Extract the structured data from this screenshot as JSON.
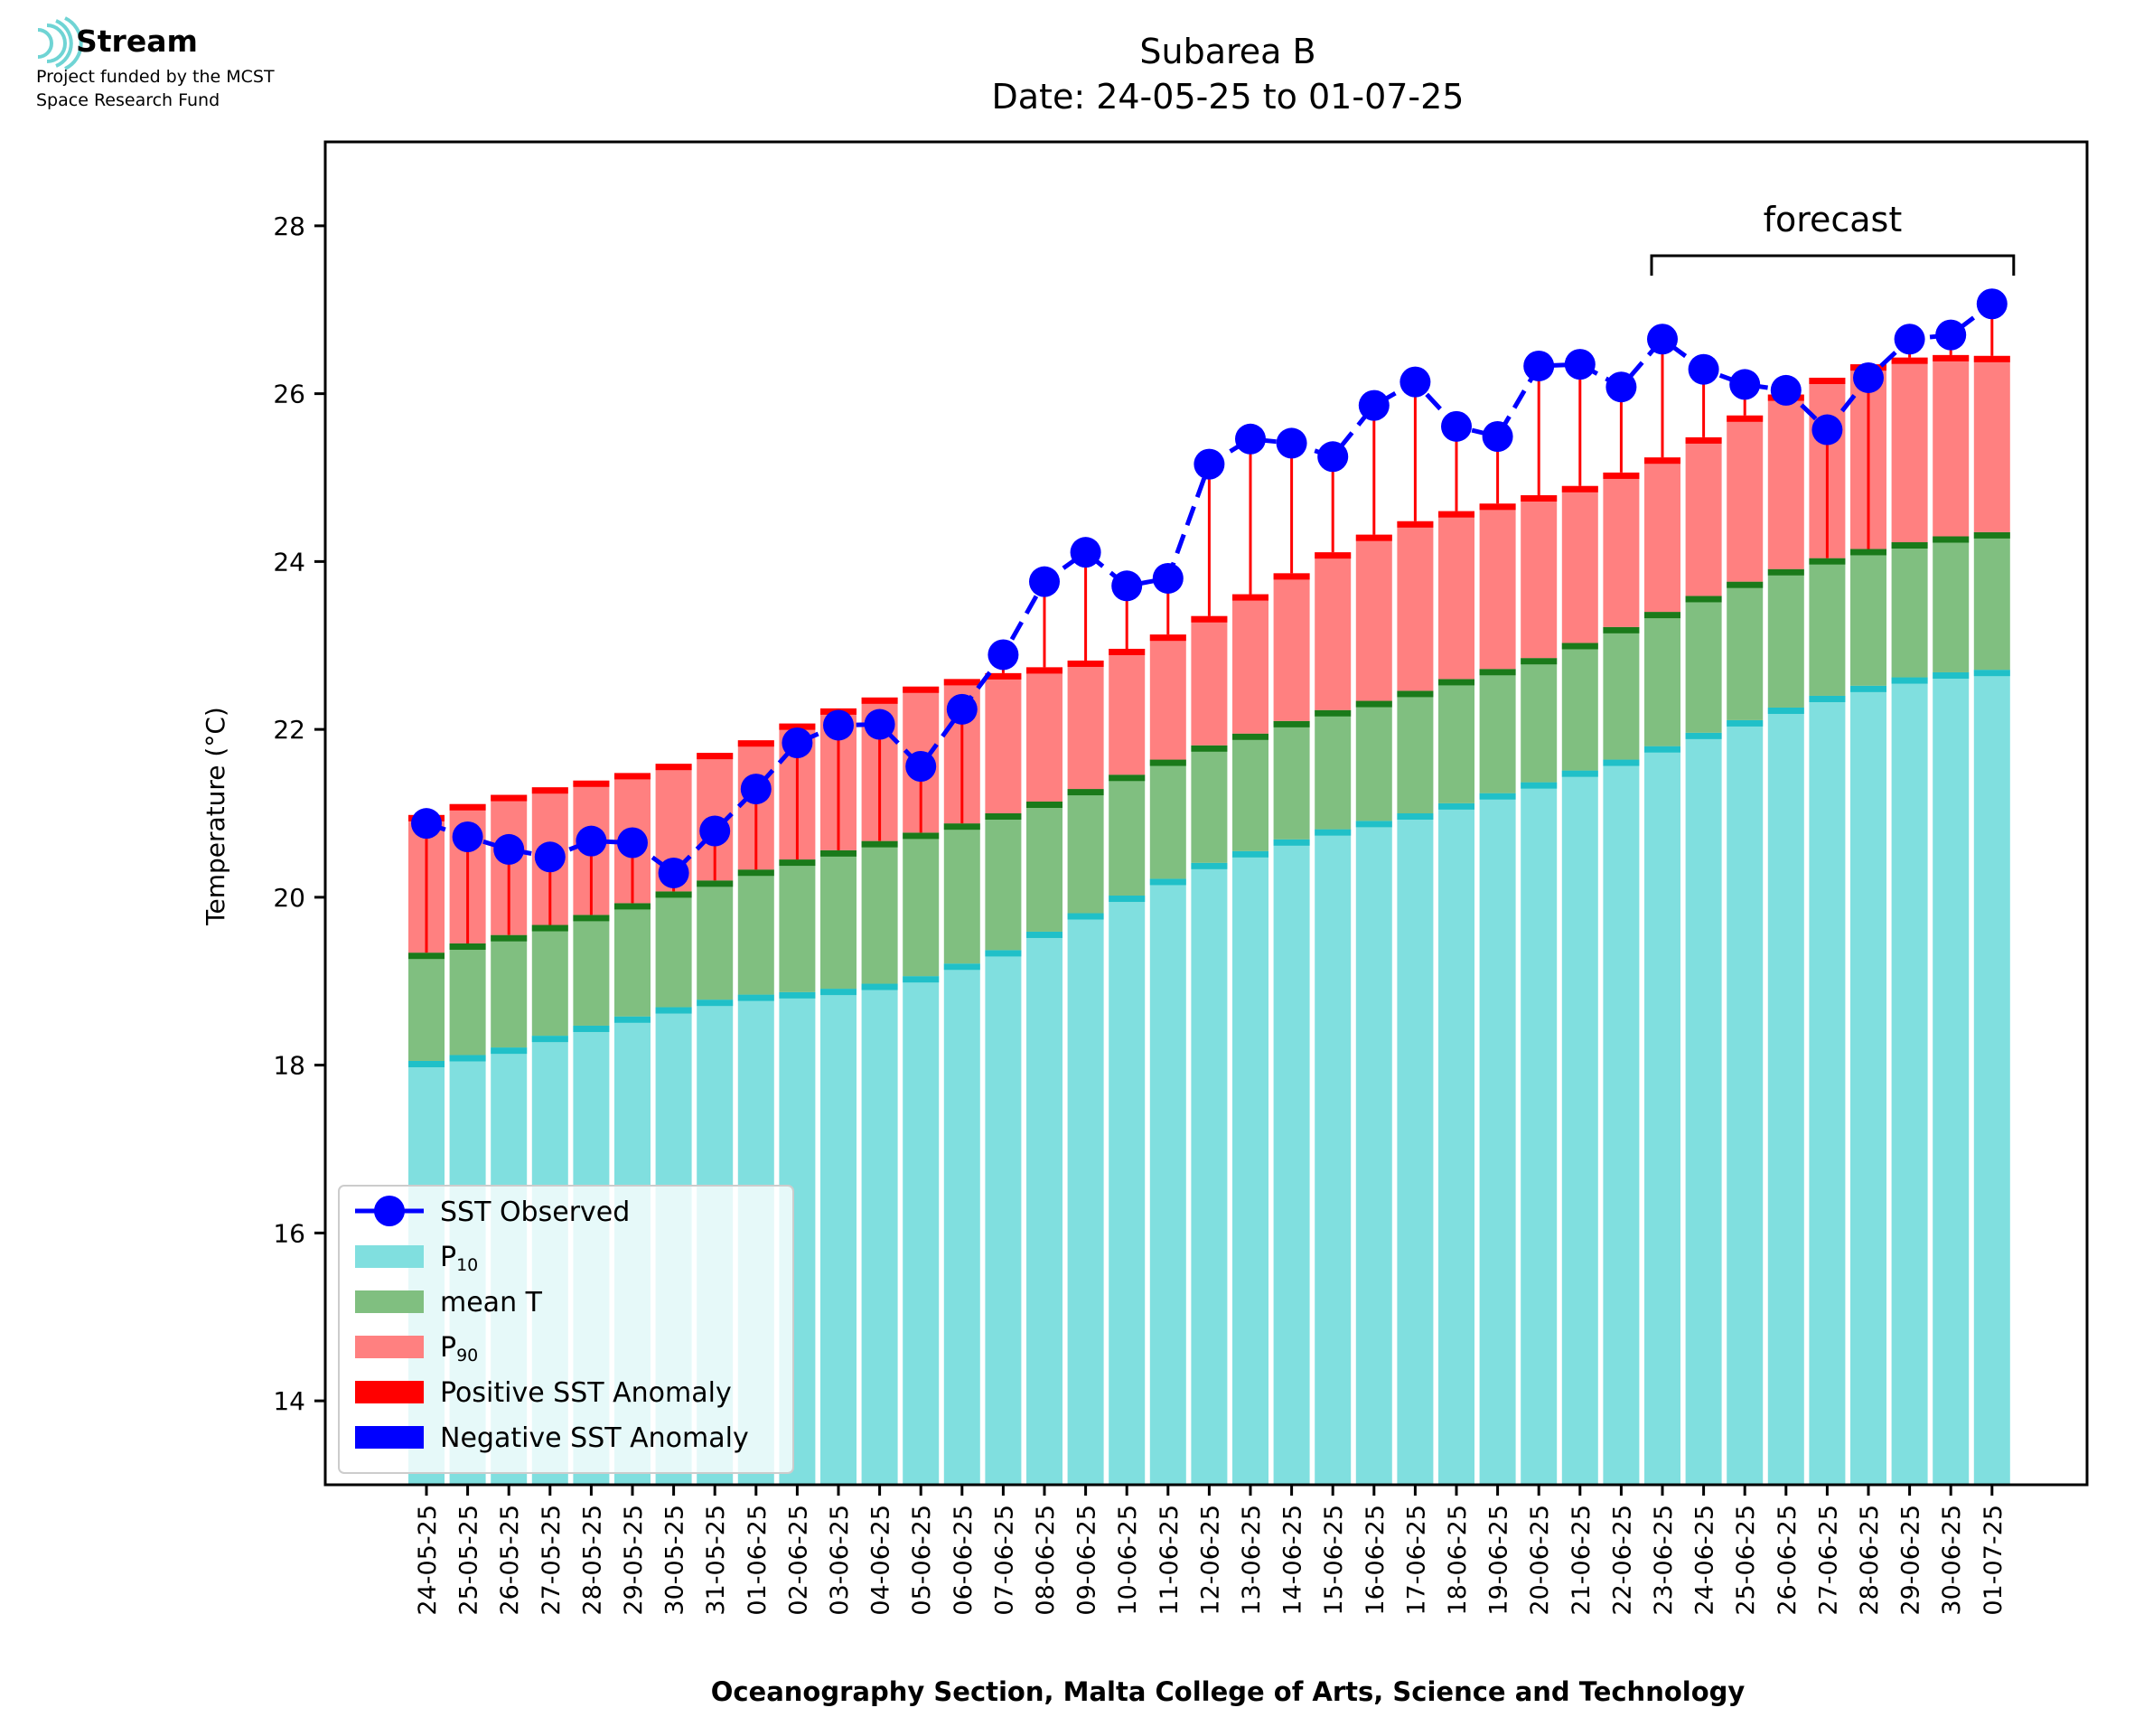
{
  "logo": {
    "name": "Stream",
    "line1": "Project funded by the MCST",
    "line2": "Space Research Fund"
  },
  "chart_data": {
    "type": "bar",
    "title": "Subarea B",
    "subtitle": "Date: 24-05-25 to 01-07-25",
    "xlabel": "Oceanography Section, Malta College of Arts, Science and Technology",
    "ylabel": "Temperature (°C)",
    "ylim": [
      13,
      29
    ],
    "yticks": [
      14,
      16,
      18,
      20,
      22,
      24,
      26,
      28
    ],
    "grid": false,
    "legend_position": "bottom-left",
    "categories": [
      "24-05-25",
      "25-05-25",
      "26-05-25",
      "27-05-25",
      "28-05-25",
      "29-05-25",
      "30-05-25",
      "31-05-25",
      "01-06-25",
      "02-06-25",
      "03-06-25",
      "04-06-25",
      "05-06-25",
      "06-06-25",
      "07-06-25",
      "08-06-25",
      "09-06-25",
      "10-06-25",
      "11-06-25",
      "12-06-25",
      "13-06-25",
      "14-06-25",
      "15-06-25",
      "16-06-25",
      "17-06-25",
      "18-06-25",
      "19-06-25",
      "20-06-25",
      "21-06-25",
      "22-06-25",
      "23-06-25",
      "24-06-25",
      "25-06-25",
      "26-06-25",
      "27-06-25",
      "28-06-25",
      "29-06-25",
      "30-06-25",
      "01-07-25"
    ],
    "series": [
      {
        "name": "SST Observed",
        "kind": "line",
        "color": "#0000ff",
        "values": [
          20.88,
          20.72,
          20.57,
          20.48,
          20.67,
          20.65,
          20.29,
          20.79,
          21.29,
          21.84,
          22.05,
          22.06,
          21.56,
          22.24,
          22.89,
          23.76,
          24.11,
          23.71,
          23.8,
          25.16,
          25.46,
          25.41,
          25.25,
          25.86,
          26.14,
          25.61,
          25.49,
          26.33,
          26.35,
          26.08,
          26.65,
          26.29,
          26.11,
          26.04,
          25.57,
          26.19,
          26.65,
          26.7,
          27.07
        ]
      },
      {
        "name": "P10",
        "name_main": "P",
        "name_sub": "10",
        "kind": "bar",
        "color": "#80dfdf",
        "edge_color": "#20c0c8",
        "values": [
          18.05,
          18.12,
          18.21,
          18.35,
          18.47,
          18.58,
          18.69,
          18.78,
          18.84,
          18.87,
          18.91,
          18.97,
          19.06,
          19.21,
          19.37,
          19.59,
          19.81,
          20.02,
          20.22,
          20.41,
          20.55,
          20.69,
          20.81,
          20.91,
          21.0,
          21.12,
          21.24,
          21.37,
          21.51,
          21.64,
          21.8,
          21.96,
          22.11,
          22.26,
          22.4,
          22.52,
          22.62,
          22.68,
          22.71
        ]
      },
      {
        "name": "mean T",
        "kind": "bar",
        "color": "#80bf80",
        "edge_color": "#1a7a1a",
        "values": [
          19.34,
          19.45,
          19.55,
          19.67,
          19.79,
          19.93,
          20.07,
          20.2,
          20.33,
          20.45,
          20.56,
          20.67,
          20.77,
          20.88,
          21.0,
          21.14,
          21.29,
          21.46,
          21.64,
          21.81,
          21.95,
          22.1,
          22.23,
          22.34,
          22.46,
          22.6,
          22.72,
          22.85,
          23.03,
          23.22,
          23.4,
          23.59,
          23.76,
          23.91,
          24.04,
          24.15,
          24.23,
          24.3,
          24.35
        ]
      },
      {
        "name": "P90",
        "name_main": "P",
        "name_sub": "90",
        "kind": "bar",
        "color": "#ff8080",
        "edge_color": "#ff0000",
        "values": [
          20.98,
          21.11,
          21.22,
          21.31,
          21.39,
          21.48,
          21.59,
          21.72,
          21.87,
          22.07,
          22.25,
          22.38,
          22.51,
          22.6,
          22.67,
          22.74,
          22.82,
          22.96,
          23.13,
          23.35,
          23.61,
          23.86,
          24.11,
          24.32,
          24.48,
          24.6,
          24.69,
          24.79,
          24.9,
          25.06,
          25.24,
          25.48,
          25.74,
          25.99,
          26.19,
          26.35,
          26.43,
          26.46,
          26.45
        ]
      }
    ],
    "anomaly_legend": [
      {
        "name": "Positive SST Anomaly",
        "color": "#ff0000"
      },
      {
        "name": "Negative SST Anomaly",
        "color": "#0000ff"
      }
    ],
    "annotation": {
      "text": "forecast",
      "from": "23-06-25",
      "to": "01-07-25"
    }
  }
}
